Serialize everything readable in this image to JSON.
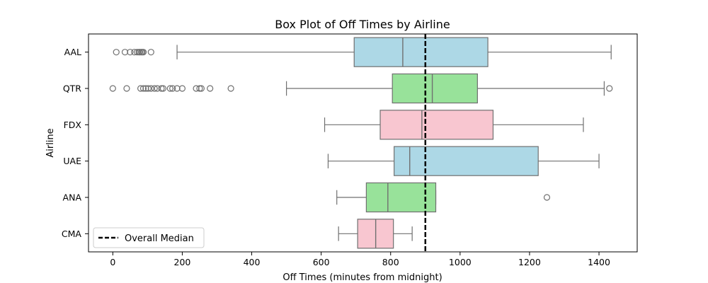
{
  "chart_data": {
    "type": "boxplot",
    "orientation": "horizontal",
    "title": "Box Plot of Off Times by Airline",
    "xlabel": "Off Times (minutes from midnight)",
    "ylabel": "Airline",
    "xlim": [
      -70,
      1510
    ],
    "xticks": [
      0,
      200,
      400,
      600,
      800,
      1000,
      1200,
      1400
    ],
    "grid": false,
    "reference_line": {
      "label": "Overall Median",
      "value": 900,
      "style": "dashed",
      "color": "#000000"
    },
    "legend": {
      "position": "lower-left",
      "entries": [
        "Overall Median"
      ]
    },
    "categories": [
      "AAL",
      "QTR",
      "FDX",
      "UAE",
      "ANA",
      "CMA"
    ],
    "boxes": [
      {
        "airline": "AAL",
        "whisker_low": 185,
        "q1": 695,
        "median": 835,
        "q3": 1080,
        "whisker_high": 1435,
        "color": "#add8e6",
        "outliers": [
          10,
          35,
          50,
          62,
          70,
          75,
          78,
          82,
          85,
          88,
          110
        ]
      },
      {
        "airline": "QTR",
        "whisker_low": 500,
        "q1": 805,
        "median": 920,
        "q3": 1050,
        "whisker_high": 1415,
        "color": "#98e29a",
        "outliers": [
          0,
          40,
          80,
          88,
          95,
          102,
          110,
          120,
          128,
          140,
          145,
          165,
          172,
          185,
          200,
          240,
          250,
          255,
          280,
          340,
          1430
        ]
      },
      {
        "airline": "FDX",
        "whisker_low": 610,
        "q1": 770,
        "median": 890,
        "q3": 1095,
        "whisker_high": 1355,
        "color": "#f8c6d0",
        "outliers": []
      },
      {
        "airline": "UAE",
        "whisker_low": 620,
        "q1": 810,
        "median": 855,
        "q3": 1225,
        "whisker_high": 1400,
        "color": "#add8e6",
        "outliers": []
      },
      {
        "airline": "ANA",
        "whisker_low": 645,
        "q1": 730,
        "median": 792,
        "q3": 930,
        "whisker_high": 930,
        "color": "#98e29a",
        "outliers": [
          1250
        ]
      },
      {
        "airline": "CMA",
        "whisker_low": 650,
        "q1": 705,
        "median": 757,
        "q3": 808,
        "whisker_high": 862,
        "color": "#f8c6d0",
        "outliers": []
      }
    ]
  }
}
